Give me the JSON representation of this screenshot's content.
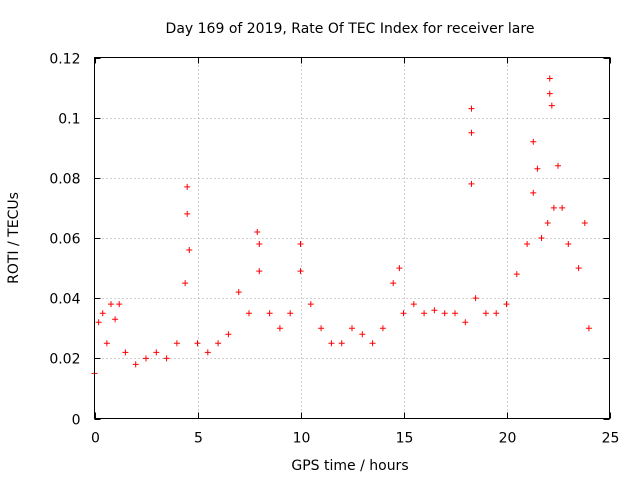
{
  "chart_data": {
    "type": "scatter",
    "title": "Day 169 of 2019, Rate Of TEC Index for receiver lare",
    "xlabel": "GPS time / hours",
    "ylabel": "ROTI / TECUs",
    "xlim": [
      0,
      25
    ],
    "ylim": [
      0,
      0.12
    ],
    "xticks": [
      0,
      5,
      10,
      15,
      20,
      25
    ],
    "xtick_labels": [
      "0",
      "5",
      "10",
      "15",
      "20",
      "25"
    ],
    "yticks": [
      0,
      0.02,
      0.04,
      0.06,
      0.08,
      0.1,
      0.12
    ],
    "ytick_labels": [
      "0",
      "0.02",
      "0.04",
      "0.06",
      "0.08",
      "0.1",
      "0.12"
    ],
    "grid": true,
    "marker": "+",
    "color": "#ff0000",
    "series": [
      {
        "name": "ROTI",
        "x": [
          0.0,
          0.2,
          0.4,
          0.6,
          0.8,
          1.0,
          1.2,
          1.5,
          2.0,
          2.5,
          3.0,
          3.5,
          4.0,
          4.4,
          4.5,
          4.5,
          4.6,
          5.0,
          5.5,
          6.0,
          6.5,
          7.0,
          7.5,
          7.9,
          8.0,
          8.0,
          8.5,
          9.0,
          9.5,
          10.0,
          10.0,
          10.5,
          11.0,
          11.5,
          12.0,
          12.5,
          13.0,
          13.5,
          14.0,
          14.5,
          14.8,
          15.0,
          15.5,
          16.0,
          16.5,
          17.0,
          17.5,
          18.0,
          18.3,
          18.3,
          18.3,
          18.5,
          19.0,
          19.5,
          20.0,
          20.5,
          21.0,
          21.3,
          21.3,
          21.5,
          21.7,
          22.0,
          22.1,
          22.1,
          22.2,
          22.3,
          22.5,
          22.7,
          23.0,
          23.5,
          23.8,
          24.0
        ],
        "y": [
          0.015,
          0.032,
          0.035,
          0.025,
          0.038,
          0.033,
          0.038,
          0.022,
          0.018,
          0.02,
          0.022,
          0.02,
          0.025,
          0.045,
          0.077,
          0.068,
          0.056,
          0.025,
          0.022,
          0.025,
          0.028,
          0.042,
          0.035,
          0.062,
          0.058,
          0.049,
          0.035,
          0.03,
          0.035,
          0.058,
          0.049,
          0.038,
          0.03,
          0.025,
          0.025,
          0.03,
          0.028,
          0.025,
          0.03,
          0.045,
          0.05,
          0.035,
          0.038,
          0.035,
          0.036,
          0.035,
          0.035,
          0.032,
          0.103,
          0.095,
          0.078,
          0.04,
          0.035,
          0.035,
          0.038,
          0.048,
          0.058,
          0.092,
          0.075,
          0.083,
          0.06,
          0.065,
          0.113,
          0.108,
          0.104,
          0.07,
          0.084,
          0.07,
          0.058,
          0.05,
          0.065,
          0.03
        ]
      }
    ]
  }
}
